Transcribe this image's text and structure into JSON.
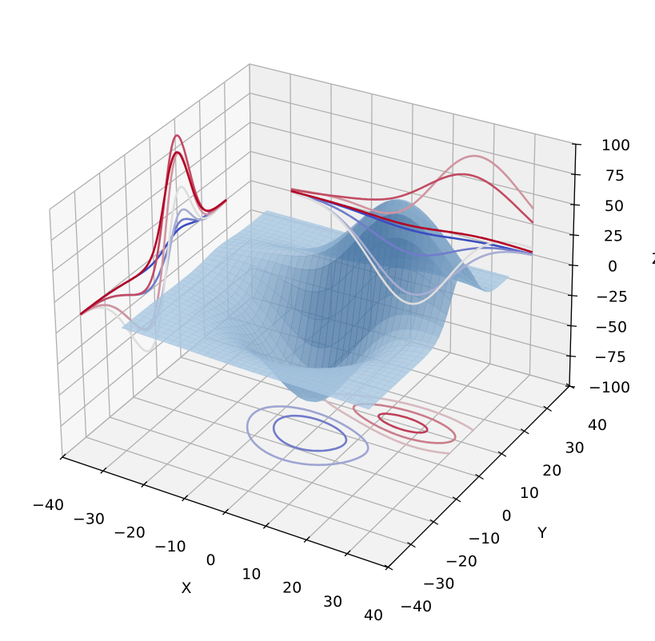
{
  "chart_data": {
    "type": "surface3d",
    "title": "",
    "description_series": [
      "surface",
      "contour zdir=z offset=-100",
      "contour zdir=x offset=-40",
      "contour zdir=y offset=40"
    ],
    "xlabel": "X",
    "ylabel": "Y",
    "zlabel": "Z",
    "xlim": [
      -40,
      40
    ],
    "ylim": [
      -40,
      40
    ],
    "zlim": [
      -100,
      100
    ],
    "xticks": [
      "−40",
      "−30",
      "−20",
      "−10",
      "0",
      "10",
      "20",
      "30",
      "40"
    ],
    "yticks": [
      "−40",
      "−30",
      "−20",
      "−10",
      "0",
      "10",
      "20",
      "30",
      "40"
    ],
    "zticks": [
      "−100",
      "−75",
      "−50",
      "−25",
      "0",
      "25",
      "50",
      "75",
      "100"
    ],
    "xtick_values": [
      -40,
      -30,
      -20,
      -10,
      0,
      10,
      20,
      30,
      40
    ],
    "ytick_values": [
      -40,
      -30,
      -20,
      -10,
      0,
      10,
      20,
      30,
      40
    ],
    "ztick_values": [
      -100,
      -75,
      -50,
      -25,
      0,
      25,
      50,
      75,
      100
    ],
    "surface_domain": [
      -30,
      30
    ],
    "contour_levels": [
      -75,
      -50,
      -25,
      0,
      25,
      50,
      75,
      100
    ],
    "grid": true,
    "colormap": "coolwarm",
    "surface_color": "#4682b4"
  }
}
